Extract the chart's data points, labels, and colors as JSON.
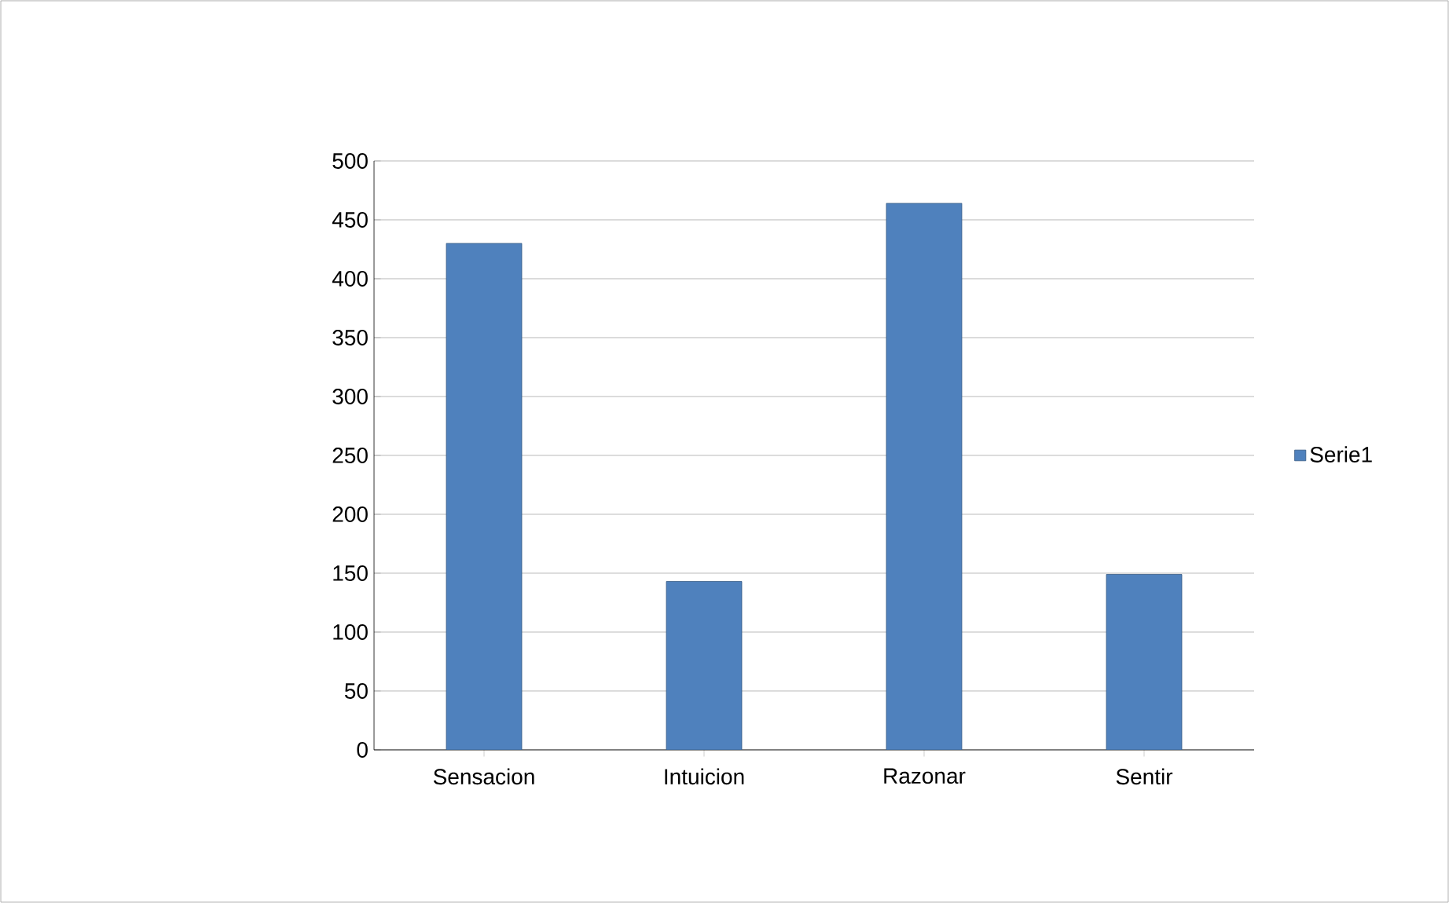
{
  "chart_data": {
    "type": "bar",
    "categories": [
      "Sensacion",
      "Intuicion",
      "Razonar",
      "Sentir"
    ],
    "series": [
      {
        "name": "Serie1",
        "color": "#4f81bd",
        "values": [
          430,
          143,
          464,
          149
        ]
      }
    ],
    "ylim": [
      0,
      500
    ],
    "yticks": [
      0,
      50,
      100,
      150,
      200,
      250,
      300,
      350,
      400,
      450,
      500
    ],
    "grid": "y",
    "legend": "right"
  }
}
